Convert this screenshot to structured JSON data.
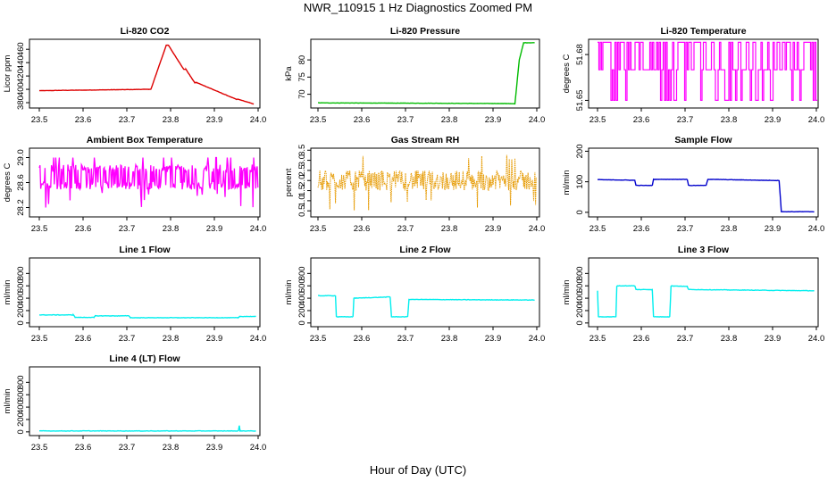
{
  "figure": {
    "title": "NWR_110915  1 Hz Diagnostics Zoomed PM",
    "xlabel": "Hour of Day (UTC)"
  },
  "chart_data": [
    {
      "type": "line",
      "title": "Li-820 CO2",
      "ylabel": "Licor ppm",
      "color": "#dd0000",
      "xlim": [
        23.5,
        24.0
      ],
      "ylim": [
        372,
        475
      ],
      "xticks": [
        "23.5",
        "23.6",
        "23.7",
        "23.8",
        "23.9",
        "24.0"
      ],
      "yticks": [
        380,
        400,
        420,
        440,
        460
      ],
      "x": [
        23.5,
        23.75,
        23.755,
        23.79,
        23.795,
        23.83,
        23.835,
        23.855,
        23.86,
        23.95,
        23.955,
        23.99
      ],
      "values": [
        398,
        400,
        400,
        466,
        466,
        430,
        430,
        410,
        410,
        385,
        385,
        378
      ]
    },
    {
      "type": "line",
      "title": "Li-820 Pressure",
      "ylabel": "kPa",
      "color": "#00bb00",
      "xlim": [
        23.5,
        24.0
      ],
      "ylim": [
        66,
        86
      ],
      "xticks": [
        "23.5",
        "23.6",
        "23.7",
        "23.8",
        "23.9",
        "24.0"
      ],
      "yticks": [
        70,
        75,
        80
      ],
      "x": [
        23.5,
        23.93,
        23.95,
        23.96,
        23.97,
        23.995
      ],
      "values": [
        67.5,
        67.3,
        67.2,
        80,
        85,
        85
      ]
    },
    {
      "type": "line",
      "title": "Li-820 Temperature",
      "ylabel": "degrees C",
      "color": "#ff00ff",
      "xlim": [
        23.5,
        24.0
      ],
      "ylim": [
        51.645,
        51.69
      ],
      "xticks": [
        "23.5",
        "23.6",
        "23.7",
        "23.8",
        "23.9",
        "24.0"
      ],
      "yticks": [
        51.65,
        51.68
      ],
      "yticklabels": [
        "51.65",
        "51.68"
      ],
      "levels": [
        51.65,
        51.67,
        51.688
      ],
      "values": [
        51.67,
        51.688
      ]
    },
    {
      "type": "line",
      "title": "Ambient Box Temperature",
      "ylabel": "degrees C",
      "color": "#ff00ff",
      "xlim": [
        23.5,
        24.0
      ],
      "ylim": [
        28.05,
        29.15
      ],
      "xticks": [
        "23.5",
        "23.6",
        "23.7",
        "23.8",
        "23.9",
        "24.0"
      ],
      "yticks": [
        28.2,
        28.6,
        29.0
      ],
      "yticklabels": [
        "28.2",
        "28.6",
        "29.0"
      ],
      "values": [
        28.55,
        28.85,
        28.2,
        29.0
      ]
    },
    {
      "type": "scatter",
      "title": "Gas Stream RH",
      "ylabel": "percent",
      "color": "#e69a00",
      "xlim": [
        23.5,
        24.0
      ],
      "ylim": [
        0.2,
        3.6
      ],
      "xticks": [
        "23.5",
        "23.6",
        "23.7",
        "23.8",
        "23.9",
        "24.0"
      ],
      "yticks": [
        0.5,
        1.0,
        1.5,
        2.0,
        2.5,
        3.0,
        3.5
      ],
      "yticklabels": [
        "0.5",
        "1.0",
        "1.5",
        "2.0",
        "2.5",
        "3.0",
        "3.5"
      ],
      "values": [
        1.4,
        2.6,
        0.5,
        3.3
      ]
    },
    {
      "type": "line",
      "title": "Sample Flow",
      "ylabel": "ml/min",
      "color": "#0000cc",
      "xlim": [
        23.5,
        24.0
      ],
      "ylim": [
        -15,
        210
      ],
      "xticks": [
        "23.5",
        "23.6",
        "23.7",
        "23.8",
        "23.9",
        "24.0"
      ],
      "yticks": [
        0,
        100,
        200
      ],
      "x": [
        23.5,
        23.585,
        23.588,
        23.625,
        23.628,
        23.705,
        23.708,
        23.748,
        23.752,
        23.915,
        23.92,
        23.995
      ],
      "values": [
        107,
        105,
        88,
        88,
        108,
        108,
        88,
        88,
        108,
        104,
        2,
        2
      ]
    },
    {
      "type": "line",
      "title": "Line 1 Flow",
      "ylabel": "ml/min",
      "color": "#00eeee",
      "xlim": [
        23.5,
        24.0
      ],
      "ylim": [
        -60,
        1050
      ],
      "xticks": [
        "23.5",
        "23.6",
        "23.7",
        "23.8",
        "23.9",
        "24.0"
      ],
      "yticks": [
        0,
        200,
        400,
        600,
        800
      ],
      "x": [
        23.5,
        23.578,
        23.582,
        23.625,
        23.628,
        23.705,
        23.708,
        23.955,
        23.958,
        23.995
      ],
      "values": [
        130,
        130,
        90,
        90,
        115,
        115,
        85,
        85,
        105,
        105
      ]
    },
    {
      "type": "line",
      "title": "Line 2 Flow",
      "ylabel": "ml/min",
      "color": "#00eeee",
      "xlim": [
        23.5,
        24.0
      ],
      "ylim": [
        -60,
        1050
      ],
      "xticks": [
        "23.5",
        "23.6",
        "23.7",
        "23.8",
        "23.9",
        "24.0"
      ],
      "yticks": [
        0,
        200,
        400,
        600,
        800
      ],
      "x": [
        23.5,
        23.54,
        23.542,
        23.58,
        23.582,
        23.665,
        23.668,
        23.705,
        23.708,
        23.995
      ],
      "values": [
        440,
        440,
        100,
        100,
        400,
        420,
        100,
        100,
        380,
        370
      ]
    },
    {
      "type": "line",
      "title": "Line 3 Flow",
      "ylabel": "ml/min",
      "color": "#00eeee",
      "xlim": [
        23.5,
        24.0
      ],
      "ylim": [
        -60,
        1050
      ],
      "xticks": [
        "23.5",
        "23.6",
        "23.7",
        "23.8",
        "23.9",
        "24.0"
      ],
      "yticks": [
        0,
        200,
        400,
        600,
        800
      ],
      "x": [
        23.5,
        23.502,
        23.542,
        23.544,
        23.585,
        23.588,
        23.625,
        23.628,
        23.665,
        23.668,
        23.705,
        23.708,
        23.995
      ],
      "values": [
        520,
        100,
        100,
        600,
        600,
        540,
        540,
        100,
        100,
        600,
        590,
        540,
        520
      ]
    },
    {
      "type": "line",
      "title": "Line 4 (LT) Flow",
      "ylabel": "ml/min",
      "color": "#00eeee",
      "xlim": [
        23.5,
        24.0
      ],
      "ylim": [
        -60,
        1050
      ],
      "xticks": [
        "23.5",
        "23.6",
        "23.7",
        "23.8",
        "23.9",
        "24.0"
      ],
      "yticks": [
        0,
        200,
        400,
        600,
        800
      ],
      "x": [
        23.5,
        23.955,
        23.957,
        23.959,
        23.995
      ],
      "values": [
        15,
        15,
        100,
        15,
        15
      ]
    }
  ]
}
